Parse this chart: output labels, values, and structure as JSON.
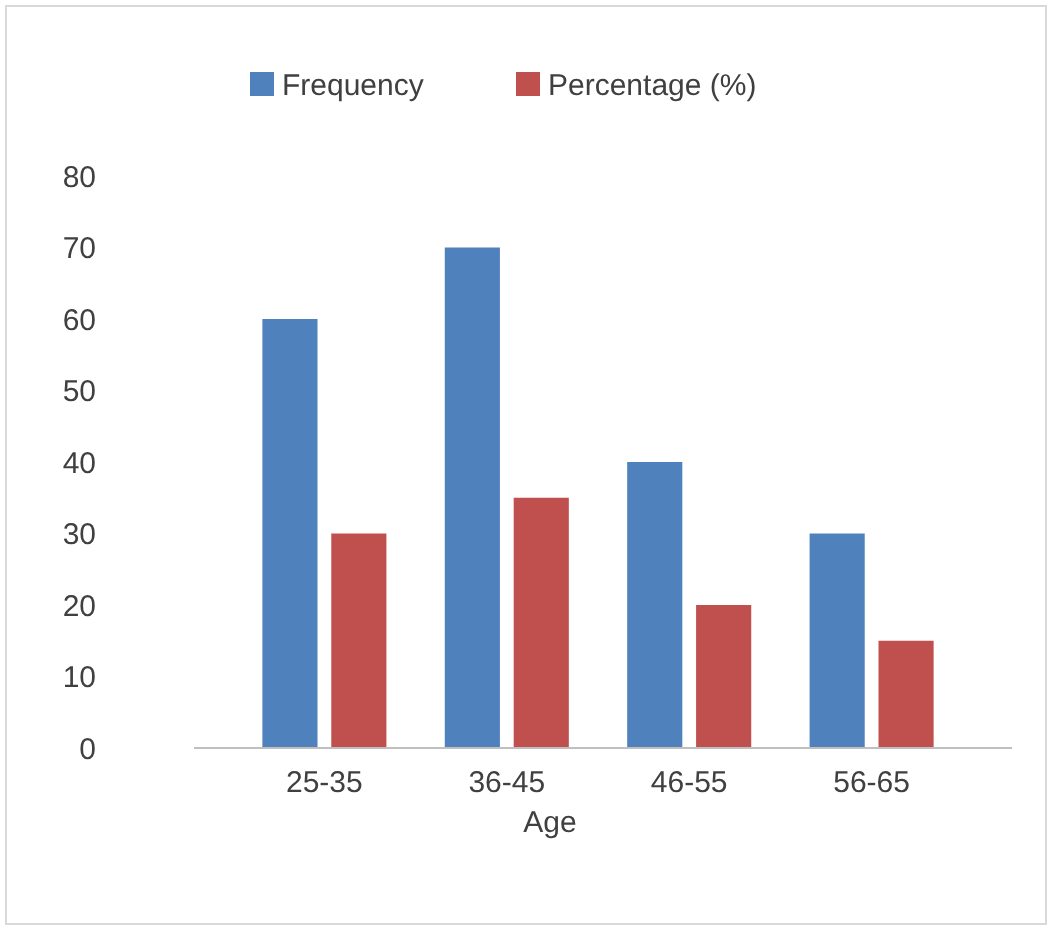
{
  "chart_data": {
    "type": "bar",
    "xlabel": "Age",
    "categories": [
      "25-35",
      "36-45",
      "46-55",
      "56-65"
    ],
    "series": [
      {
        "name": "Frequency",
        "color": "#4f81bd",
        "values": [
          60,
          70,
          40,
          30
        ]
      },
      {
        "name": "Percentage (%)",
        "color": "#c0504d",
        "values": [
          30,
          35,
          20,
          15
        ]
      }
    ],
    "ylim": [
      0,
      80
    ],
    "yticks": [
      0,
      10,
      20,
      30,
      40,
      50,
      60,
      70,
      80
    ],
    "grid": false,
    "legend": "top"
  }
}
